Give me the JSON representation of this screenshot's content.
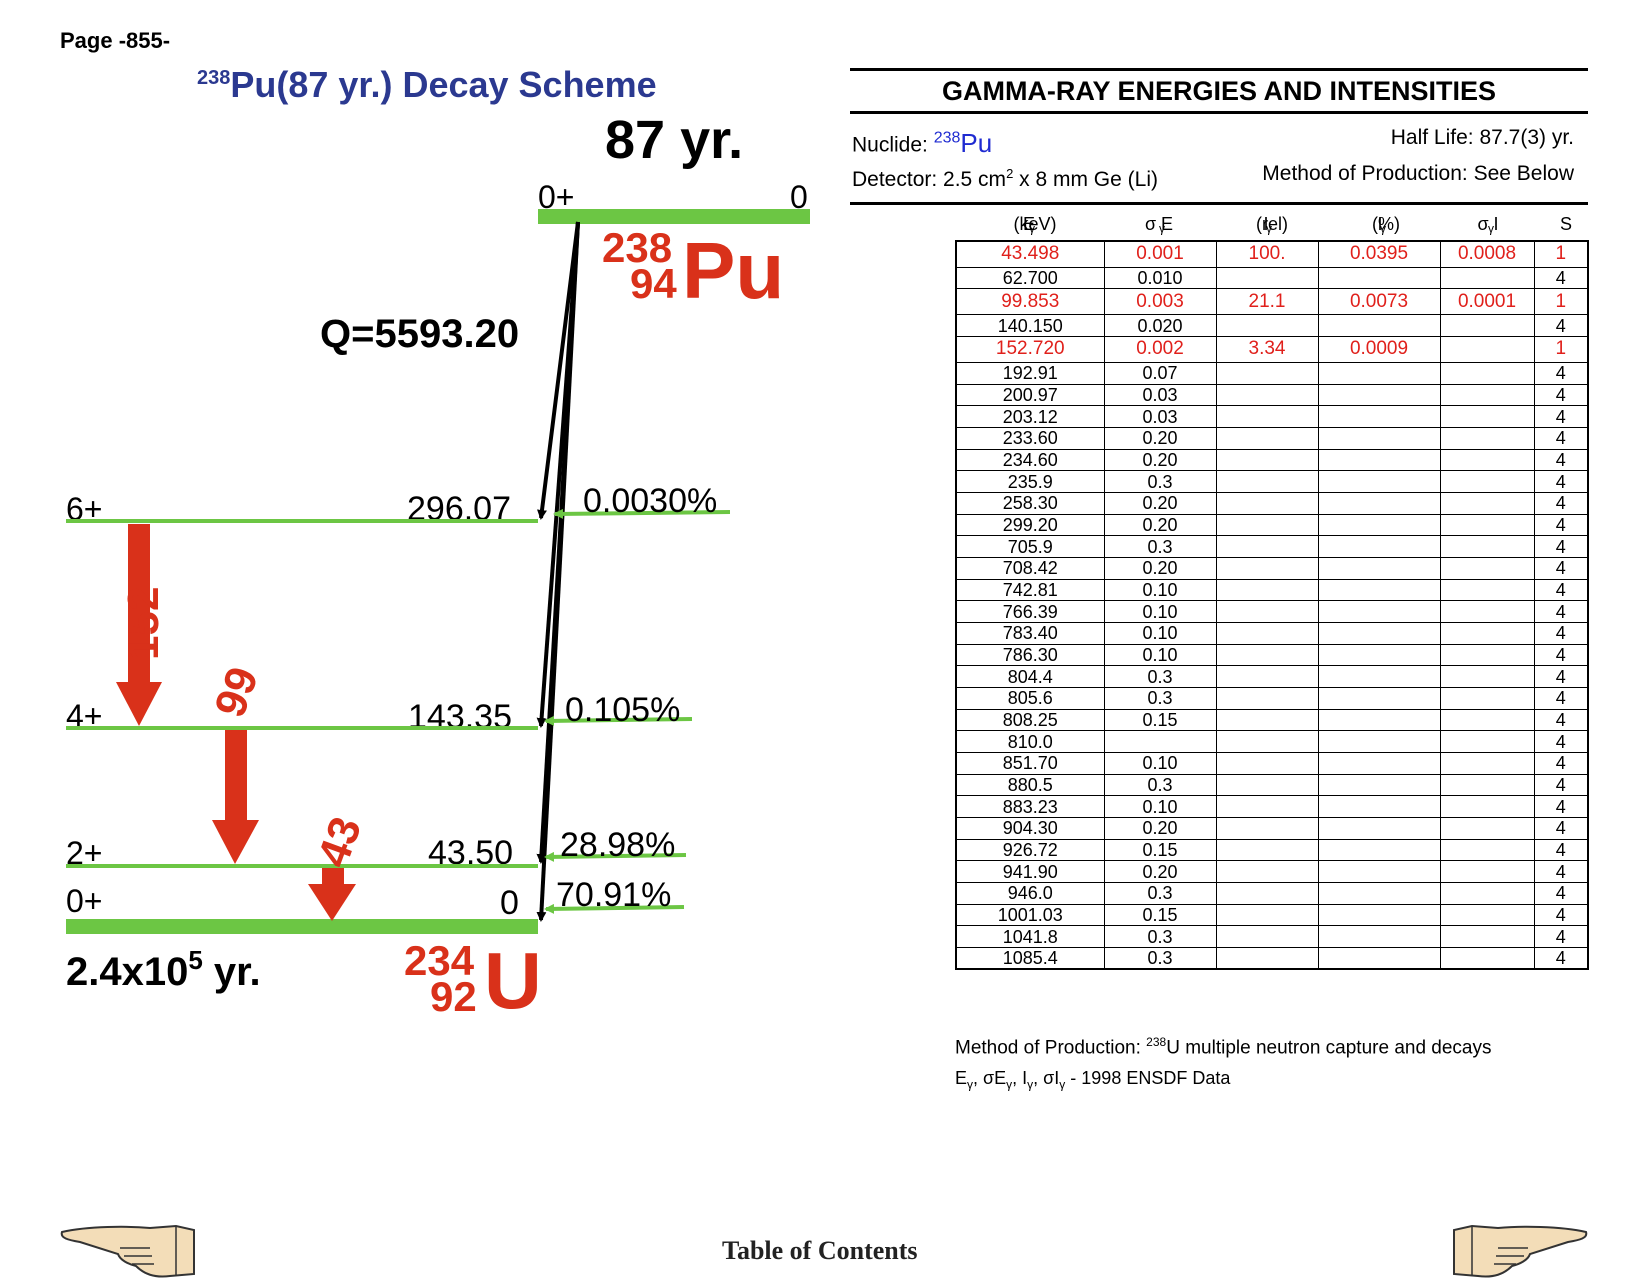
{
  "page": {
    "number_label": "Page -855-"
  },
  "scheme": {
    "title_mass": "238",
    "title_rest": "Pu(87 yr.) Decay Scheme",
    "parent": {
      "half_life": "87 yr.",
      "spin": "0+",
      "energy": "0",
      "mass": "238",
      "z": "94",
      "symbol": "Pu"
    },
    "q_value": "Q=5593.20",
    "levels": [
      {
        "spin": "6+",
        "energy": "296.07",
        "branch": "0.0030%"
      },
      {
        "spin": "4+",
        "energy": "143.35",
        "branch": "0.105%"
      },
      {
        "spin": "2+",
        "energy": "43.50",
        "branch": "28.98%"
      },
      {
        "spin": "0+",
        "energy": "0",
        "branch": "70.91%"
      }
    ],
    "gamma_labels": [
      "152",
      "99",
      "43"
    ],
    "daughter": {
      "half_life_base": "2.4x10",
      "half_life_exp": "5",
      "half_life_unit": " yr.",
      "mass": "234",
      "z": "92",
      "symbol": "U"
    },
    "colors": {
      "level": "#6cc644",
      "gamma": "#d9311a",
      "title": "#2b3990",
      "nuclide": "#d9311a"
    }
  },
  "gamma_panel": {
    "heading": "GAMMA-RAY ENERGIES AND INTENSITIES",
    "nuclide_label": "Nuclide: ",
    "nuclide_mass": "238",
    "nuclide_symbol": "Pu",
    "half_life": "Half Life: 87.7(3) yr.",
    "detector_prefix": "Detector: 2.5 cm",
    "detector_exp": "2",
    "detector_suffix": " x 8 mm Ge (Li)",
    "method": "Method of Production: See Below",
    "columns": [
      {
        "main": "E",
        "sub": "γ",
        "tail": " (keV)"
      },
      {
        "main": "σ E",
        "sub": "γ",
        "tail": ""
      },
      {
        "main": "I",
        "sub": "γ",
        "tail": " (rel)"
      },
      {
        "main": "I",
        "sub": "γ",
        "tail": " (%)"
      },
      {
        "main": "σ I",
        "sub": "γ",
        "tail": ""
      },
      {
        "main": "S",
        "sub": "",
        "tail": ""
      }
    ],
    "rows": [
      [
        "43.498",
        "0.001",
        "100.",
        "0.0395",
        "0.0008",
        "1"
      ],
      [
        "62.700",
        "0.010",
        "",
        "",
        "",
        "4"
      ],
      [
        "99.853",
        "0.003",
        "21.1",
        "0.0073",
        "0.0001",
        "1"
      ],
      [
        "140.150",
        "0.020",
        "",
        "",
        "",
        "4"
      ],
      [
        "152.720",
        "0.002",
        "3.34",
        "0.0009",
        "",
        "1"
      ],
      [
        "192.91",
        "0.07",
        "",
        "",
        "",
        "4"
      ],
      [
        "200.97",
        "0.03",
        "",
        "",
        "",
        "4"
      ],
      [
        "203.12",
        "0.03",
        "",
        "",
        "",
        "4"
      ],
      [
        "233.60",
        "0.20",
        "",
        "",
        "",
        "4"
      ],
      [
        "234.60",
        "0.20",
        "",
        "",
        "",
        "4"
      ],
      [
        "235.9",
        "0.3",
        "",
        "",
        "",
        "4"
      ],
      [
        "258.30",
        "0.20",
        "",
        "",
        "",
        "4"
      ],
      [
        "299.20",
        "0.20",
        "",
        "",
        "",
        "4"
      ],
      [
        "705.9",
        "0.3",
        "",
        "",
        "",
        "4"
      ],
      [
        "708.42",
        "0.20",
        "",
        "",
        "",
        "4"
      ],
      [
        "742.81",
        "0.10",
        "",
        "",
        "",
        "4"
      ],
      [
        "766.39",
        "0.10",
        "",
        "",
        "",
        "4"
      ],
      [
        "783.40",
        "0.10",
        "",
        "",
        "",
        "4"
      ],
      [
        "786.30",
        "0.10",
        "",
        "",
        "",
        "4"
      ],
      [
        "804.4",
        "0.3",
        "",
        "",
        "",
        "4"
      ],
      [
        "805.6",
        "0.3",
        "",
        "",
        "",
        "4"
      ],
      [
        "808.25",
        "0.15",
        "",
        "",
        "",
        "4"
      ],
      [
        "810.0",
        "",
        "",
        "",
        "",
        "4"
      ],
      [
        "851.70",
        "0.10",
        "",
        "",
        "",
        "4"
      ],
      [
        "880.5",
        "0.3",
        "",
        "",
        "",
        "4"
      ],
      [
        "883.23",
        "0.10",
        "",
        "",
        "",
        "4"
      ],
      [
        "904.30",
        "0.20",
        "",
        "",
        "",
        "4"
      ],
      [
        "926.72",
        "0.15",
        "",
        "",
        "",
        "4"
      ],
      [
        "941.90",
        "0.20",
        "",
        "",
        "",
        "4"
      ],
      [
        "946.0",
        "0.3",
        "",
        "",
        "",
        "4"
      ],
      [
        "1001.03",
        "0.15",
        "",
        "",
        "",
        "4"
      ],
      [
        "1041.8",
        "0.3",
        "",
        "",
        "",
        "4"
      ],
      [
        "1085.4",
        "0.3",
        "",
        "",
        "",
        "4"
      ]
    ],
    "highlight_color": "#e0201b",
    "method_note_prefix": "Method of Production: ",
    "method_note_mass": "238",
    "method_note_rest": "U multiple neutron capture and decays",
    "source_note": "1998 ENSDF Data"
  },
  "footer": {
    "toc_label": "Table of Contents",
    "prev_icon": "pointing-hand-left-icon",
    "next_icon": "pointing-hand-right-icon"
  }
}
